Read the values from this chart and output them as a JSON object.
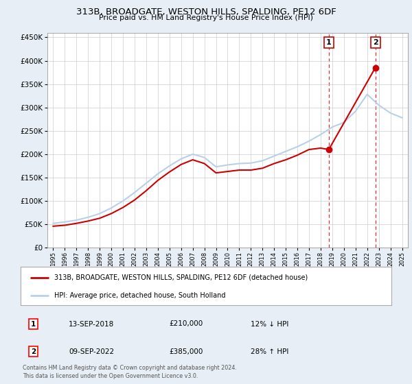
{
  "title": "313B, BROADGATE, WESTON HILLS, SPALDING, PE12 6DF",
  "subtitle": "Price paid vs. HM Land Registry's House Price Index (HPI)",
  "legend_line1": "313B, BROADGATE, WESTON HILLS, SPALDING, PE12 6DF (detached house)",
  "legend_line2": "HPI: Average price, detached house, South Holland",
  "footnote": "Contains HM Land Registry data © Crown copyright and database right 2024.\nThis data is licensed under the Open Government Licence v3.0.",
  "sale1_date": "13-SEP-2018",
  "sale1_price": "£210,000",
  "sale1_hpi": "12% ↓ HPI",
  "sale2_date": "09-SEP-2022",
  "sale2_price": "£385,000",
  "sale2_hpi": "28% ↑ HPI",
  "sale1_year": 2018.7,
  "sale1_value": 210000,
  "sale2_year": 2022.7,
  "sale2_value": 385000,
  "hpi_color": "#b8d0e8",
  "property_color": "#cc0000",
  "dashed_color": "#cc0000",
  "background_color": "#e8eef5",
  "plot_bg": "#ffffff",
  "years_x": [
    1995,
    1996,
    1997,
    1998,
    1999,
    2000,
    2001,
    2002,
    2003,
    2004,
    2005,
    2006,
    2007,
    2008,
    2009,
    2010,
    2011,
    2012,
    2013,
    2014,
    2015,
    2016,
    2017,
    2018,
    2019,
    2020,
    2021,
    2022,
    2023,
    2024,
    2025
  ],
  "hpi_values": [
    52000,
    55000,
    59000,
    65000,
    73000,
    85000,
    100000,
    118000,
    138000,
    158000,
    175000,
    190000,
    200000,
    193000,
    173000,
    177000,
    180000,
    181000,
    186000,
    196000,
    206000,
    216000,
    228000,
    242000,
    258000,
    268000,
    292000,
    328000,
    305000,
    288000,
    278000
  ],
  "property_values_x": [
    1995,
    1996,
    1997,
    1998,
    1999,
    2000,
    2001,
    2002,
    2003,
    2004,
    2005,
    2006,
    2007,
    2008,
    2009,
    2010,
    2011,
    2012,
    2013,
    2014,
    2015,
    2016,
    2017,
    2018,
    2018.7,
    2022.7
  ],
  "property_values_y": [
    46000,
    48000,
    52000,
    57000,
    63000,
    73000,
    86000,
    102000,
    122000,
    144000,
    162000,
    178000,
    188000,
    180000,
    160000,
    163000,
    166000,
    166000,
    170000,
    180000,
    188000,
    198000,
    210000,
    213000,
    210000,
    385000
  ],
  "ylim_max": 460000,
  "xlim_min": 1994.5,
  "xlim_max": 2025.5
}
